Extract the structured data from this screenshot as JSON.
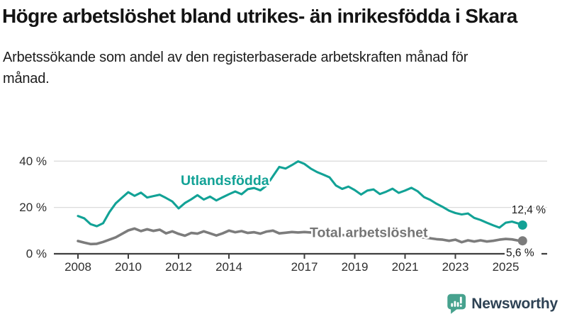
{
  "header": {
    "title": "Högre arbetslöshet bland utrikes- än inrikesfödda i Skara",
    "subtitle": "Arbetssökande som andel av den registerbaserade arbetskraften månad för månad."
  },
  "footer": {
    "brand": "Newsworthy",
    "logo_icon": "bar-chart-speech-bubble-icon",
    "brand_text_color": "#2e4254",
    "logo_color": "#47a28e"
  },
  "chart_data": {
    "type": "line",
    "x_unit": "decimal years (monthly series)",
    "grid": "horizontal gridlines at 20 % and 40 %",
    "legend_position": "labels inline on lines",
    "xlim": [
      2008,
      2026
    ],
    "ylim": [
      0,
      44
    ],
    "x_ticks": [
      {
        "value": 2008,
        "label": "2008"
      },
      {
        "value": 2010,
        "label": "2010"
      },
      {
        "value": 2012,
        "label": "2012"
      },
      {
        "value": 2014,
        "label": "2014"
      },
      {
        "value": 2017,
        "label": "2017"
      },
      {
        "value": 2019,
        "label": "2019"
      },
      {
        "value": 2021,
        "label": "2021"
      },
      {
        "value": 2023,
        "label": "2023"
      },
      {
        "value": 2025,
        "label": "2025"
      }
    ],
    "y_ticks": [
      {
        "value": 0,
        "label": "0 %"
      },
      {
        "value": 20,
        "label": "20 %"
      },
      {
        "value": 40,
        "label": "40 %"
      }
    ],
    "x": [
      2008,
      2008.25,
      2008.5,
      2008.75,
      2009,
      2009.25,
      2009.5,
      2009.75,
      2010,
      2010.25,
      2010.5,
      2010.75,
      2011,
      2011.25,
      2011.5,
      2011.75,
      2012,
      2012.25,
      2012.5,
      2012.75,
      2013,
      2013.25,
      2013.5,
      2013.75,
      2014,
      2014.25,
      2014.5,
      2014.75,
      2015,
      2015.25,
      2015.5,
      2015.75,
      2016,
      2016.25,
      2016.5,
      2016.75,
      2017,
      2017.25,
      2017.5,
      2017.75,
      2018,
      2018.25,
      2018.5,
      2018.75,
      2019,
      2019.25,
      2019.5,
      2019.75,
      2020,
      2020.25,
      2020.5,
      2020.75,
      2021,
      2021.25,
      2021.5,
      2021.75,
      2022,
      2022.25,
      2022.5,
      2022.75,
      2023,
      2023.25,
      2023.5,
      2023.75,
      2024,
      2024.25,
      2024.5,
      2024.75,
      2025,
      2025.25,
      2025.5,
      2025.67
    ],
    "series": [
      {
        "name": "Utlandsfödda",
        "color": "#12a296",
        "end_label": "12,4 %",
        "end_value": 12.4,
        "values": [
          16.3,
          15.3,
          12.8,
          11.9,
          13.2,
          18.0,
          21.8,
          24.2,
          26.6,
          25.0,
          26.4,
          24.3,
          24.9,
          25.5,
          24.1,
          22.6,
          19.6,
          21.9,
          23.5,
          25.3,
          23.4,
          24.7,
          23.0,
          24.4,
          25.7,
          26.9,
          25.7,
          27.9,
          28.4,
          27.4,
          29.5,
          33.5,
          37.5,
          36.8,
          38.3,
          39.9,
          38.8,
          36.8,
          35.3,
          34.2,
          33.0,
          29.5,
          28.0,
          29.0,
          27.5,
          25.6,
          27.3,
          27.8,
          25.8,
          26.8,
          28.1,
          26.3,
          27.3,
          28.5,
          27.0,
          24.5,
          23.3,
          21.6,
          20.2,
          18.6,
          17.6,
          17.0,
          17.4,
          15.5,
          14.6,
          13.4,
          12.3,
          11.3,
          13.4,
          13.9,
          13.1,
          12.4
        ]
      },
      {
        "name": "Total arbetslöshet",
        "color": "#7c7c7c",
        "label_color": "#757575",
        "end_label": "5,6 %",
        "end_value": 5.6,
        "values": [
          5.5,
          4.8,
          4.2,
          4.3,
          5.1,
          6.1,
          7.1,
          8.6,
          10.1,
          10.9,
          9.8,
          10.6,
          9.9,
          10.4,
          8.8,
          9.7,
          8.6,
          7.8,
          9.0,
          8.7,
          9.7,
          8.8,
          7.9,
          8.8,
          10.0,
          9.3,
          9.8,
          9.0,
          9.3,
          8.7,
          9.6,
          10.0,
          8.8,
          9.1,
          9.4,
          9.2,
          9.4,
          9.2,
          9.0,
          8.7,
          8.5,
          8.3,
          8.1,
          7.9,
          7.8,
          7.6,
          7.5,
          7.8,
          8.3,
          8.6,
          8.5,
          8.2,
          8.0,
          7.7,
          7.3,
          7.0,
          6.7,
          6.3,
          6.1,
          5.6,
          6.1,
          5.0,
          5.8,
          5.3,
          5.8,
          5.3,
          5.6,
          6.1,
          6.4,
          6.2,
          5.7,
          5.6
        ]
      }
    ],
    "colors": {
      "gridline": "#dcdcdc",
      "axis": "#3f3f3f",
      "tick_text": "#2e2e2e",
      "end_label_text": "#1a1a1a"
    }
  }
}
